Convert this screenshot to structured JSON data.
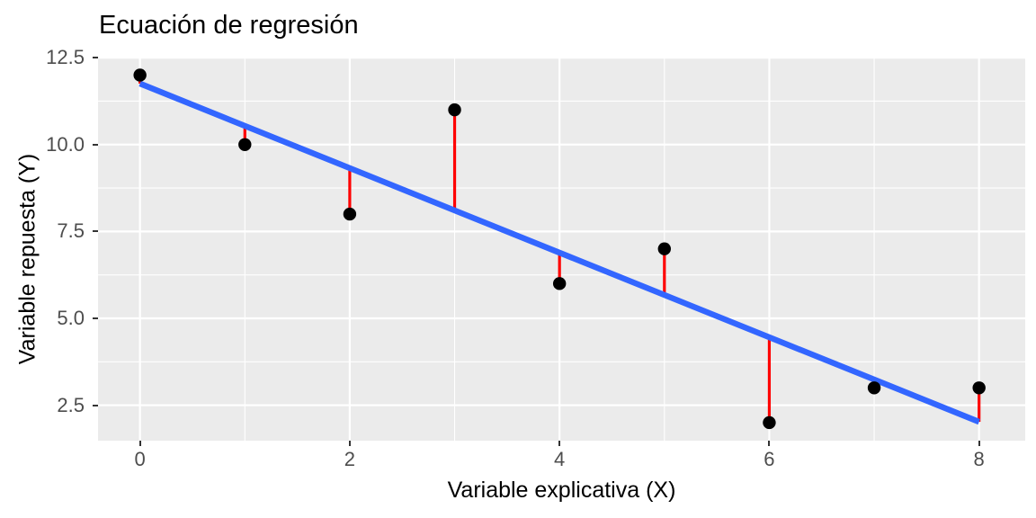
{
  "chart_data": {
    "type": "scatter",
    "title": "Ecuación de regresión",
    "xlabel": "Variable explicativa (X)",
    "ylabel": "Variable repuesta (Y)",
    "x": [
      0,
      1,
      2,
      3,
      4,
      5,
      6,
      7,
      8
    ],
    "y": [
      12,
      10,
      8,
      11,
      6,
      7,
      2,
      3,
      3
    ],
    "regression": {
      "intercept": 11.7556,
      "slope": -1.2167,
      "x_start": 0,
      "x_end": 8
    },
    "residuals_shown": true,
    "x_ticks": {
      "values": [
        0,
        2,
        4,
        6,
        8
      ],
      "labels": [
        "0",
        "2",
        "4",
        "6",
        "8"
      ]
    },
    "y_ticks": {
      "values": [
        12.5,
        10.0,
        7.5,
        5.0,
        2.5
      ],
      "labels": [
        "12.5",
        "10.0",
        "7.5",
        "5.0",
        "2.5"
      ]
    },
    "x_minor": [
      1,
      3,
      5,
      7
    ],
    "y_minor": [
      11.25,
      8.75,
      6.25,
      3.75
    ],
    "xlim": [
      -0.4,
      8.44
    ],
    "ylim": [
      1.48,
      12.53
    ],
    "grid": "major+minor",
    "legend": "none",
    "colors": {
      "background": "#FFFFFF",
      "panel_bg": "#EBEBEB",
      "grid": "#FFFFFF",
      "regression_line": "#3366FF",
      "residual": "#FF0000",
      "point": "#000000",
      "tick_label": "#4D4D4D",
      "tick_mark": "#333333",
      "text": "#000000"
    }
  }
}
